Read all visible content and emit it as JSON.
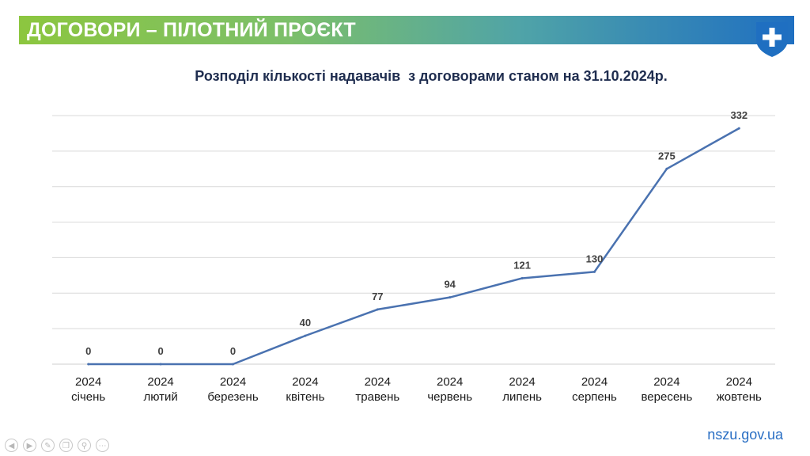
{
  "header": {
    "title": "ДОГОВОРИ – ПІЛОТНИЙ ПРОЄКТ",
    "logo_icon": "shield-cross-icon",
    "gradient_colors": [
      "#8cc63f",
      "#1f6fc1"
    ]
  },
  "footer": {
    "site": "nszu.gov.ua",
    "nav_icons": [
      "back-icon",
      "forward-icon",
      "pen-icon",
      "copy-icon",
      "zoom-icon",
      "more-icon"
    ]
  },
  "chart_data": {
    "type": "line",
    "title": "Розподіл кількості надавачів  з договорами станом на 31.10.2024р.",
    "categories": [
      [
        "2024",
        "січень"
      ],
      [
        "2024",
        "лютий"
      ],
      [
        "2024",
        "березень"
      ],
      [
        "2024",
        "квітень"
      ],
      [
        "2024",
        "травень"
      ],
      [
        "2024",
        "червень"
      ],
      [
        "2024",
        "липень"
      ],
      [
        "2024",
        "серпень"
      ],
      [
        "2024",
        "вересень"
      ],
      [
        "2024",
        "жовтень"
      ]
    ],
    "values": [
      0,
      0,
      0,
      40,
      77,
      94,
      121,
      130,
      275,
      332
    ],
    "ylim": [
      0,
      350
    ],
    "grid": true,
    "line_color": "#4a72b0",
    "legend": "none"
  }
}
